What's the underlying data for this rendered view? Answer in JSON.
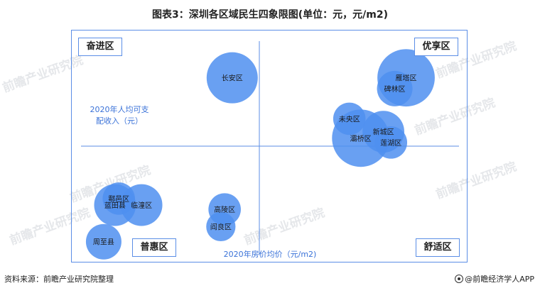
{
  "title": "图表3：深圳各区域民生四象限图(单位：元，元/m2)",
  "quadrants": {
    "top_left": "奋进区",
    "top_right": "优享区",
    "bottom_left": "普惠区",
    "bottom_right": "舒适区"
  },
  "watermark": "前瞻产业研究院",
  "footer": {
    "source": "资料来源：前瞻产业研究院整理",
    "brand": "@前瞻经济学人APP"
  },
  "colors": {
    "bubble": "#4f8ff0",
    "frame": "#5b8ee6",
    "axis_text": "#3a72d8"
  },
  "chart_data": {
    "type": "scatter",
    "xlabel": "2020年房价均价（元/m2)",
    "ylabel": "2020年人均可支配收入（元）",
    "ylabel_lines": [
      "2020年人均可支",
      "配收入（元）"
    ],
    "x_tick_labels": [],
    "y_tick_labels": [],
    "grid": false,
    "points": [
      {
        "label": "长安区",
        "x": 0.4,
        "y": 0.83,
        "size": 1.0
      },
      {
        "label": "雁塔区",
        "x": 0.86,
        "y": 0.83,
        "size": 1.2
      },
      {
        "label": "碑林区",
        "x": 0.83,
        "y": 0.78,
        "size": 0.5
      },
      {
        "label": "未央区",
        "x": 0.71,
        "y": 0.64,
        "size": 0.4
      },
      {
        "label": "新城区",
        "x": 0.8,
        "y": 0.58,
        "size": 0.7
      },
      {
        "label": "灞桥区",
        "x": 0.74,
        "y": 0.55,
        "size": 1.2
      },
      {
        "label": "莲湖区",
        "x": 0.82,
        "y": 0.53,
        "size": 0.4
      },
      {
        "label": "鄠邑区",
        "x": 0.1,
        "y": 0.27,
        "size": 0.4
      },
      {
        "label": "蓝田县",
        "x": 0.09,
        "y": 0.24,
        "size": 0.7
      },
      {
        "label": "临潼区",
        "x": 0.16,
        "y": 0.24,
        "size": 0.7
      },
      {
        "label": "高陵区",
        "x": 0.38,
        "y": 0.22,
        "size": 0.4
      },
      {
        "label": "阎良区",
        "x": 0.37,
        "y": 0.14,
        "size": 0.3
      },
      {
        "label": "周至县",
        "x": 0.06,
        "y": 0.07,
        "size": 0.5
      }
    ]
  }
}
